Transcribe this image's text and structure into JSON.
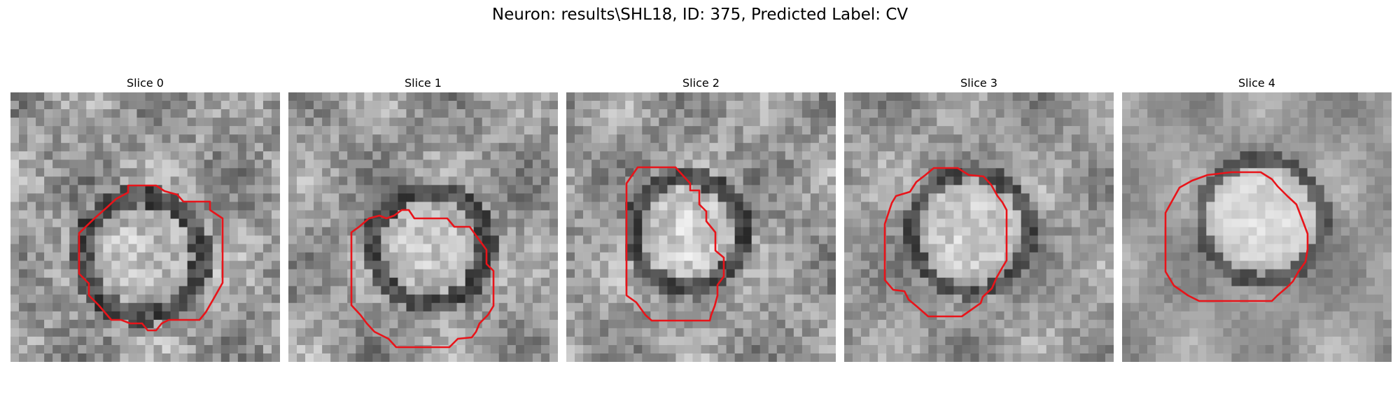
{
  "title": "Neuron: results\\SHL18, ID: 375, Predicted Label: CV",
  "outline_color": "#e8141a",
  "panels": [
    {
      "label": "Slice 0"
    },
    {
      "label": "Slice 1"
    },
    {
      "label": "Slice 2"
    },
    {
      "label": "Slice 3"
    },
    {
      "label": "Slice 4"
    }
  ]
}
